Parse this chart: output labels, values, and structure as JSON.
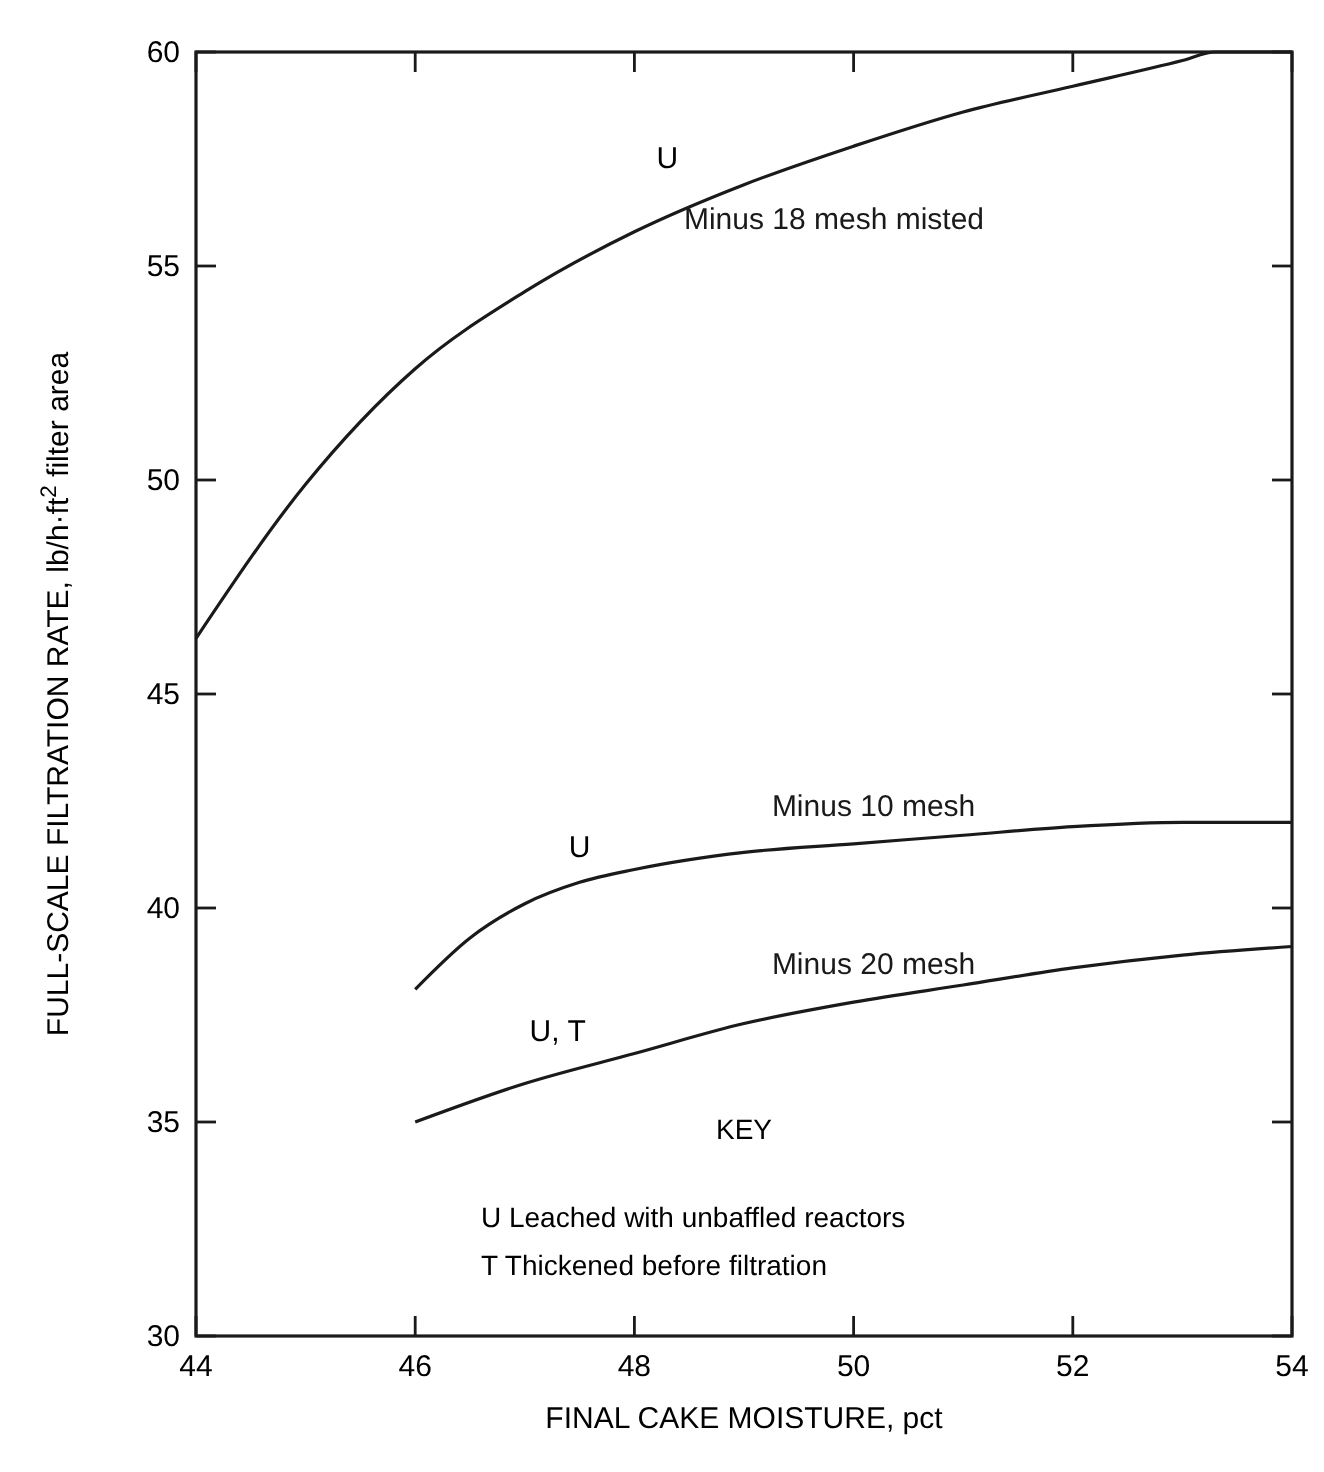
{
  "chart_data": {
    "type": "line",
    "xlabel": "FINAL CAKE MOISTURE, pct",
    "ylabel": "FULL-SCALE FILTRATION RATE, lb/h·ft$^{2}$ filter area",
    "xlim": [
      44,
      54
    ],
    "ylim": [
      30,
      60
    ],
    "xticks": [
      44,
      46,
      48,
      50,
      52,
      54
    ],
    "yticks": [
      30,
      35,
      40,
      45,
      50,
      55,
      60
    ],
    "grid": false,
    "marker": "none",
    "line_style": "solid",
    "series": [
      {
        "name": "Minus 18 mesh misted",
        "color": "#1a1a1a",
        "x": [
          44,
          45,
          46,
          47,
          48,
          49,
          50,
          51,
          52,
          53,
          53.3,
          54
        ],
        "values": [
          46.3,
          49.9,
          52.6,
          54.4,
          55.8,
          56.9,
          57.8,
          58.6,
          59.2,
          59.8,
          60,
          60
        ]
      },
      {
        "name": "Minus 10 mesh",
        "color": "#1a1a1a",
        "x": [
          46,
          46.5,
          47,
          47.5,
          48,
          49,
          50,
          51,
          52,
          53,
          54
        ],
        "values": [
          38.1,
          39.3,
          40.1,
          40.6,
          40.9,
          41.3,
          41.5,
          41.7,
          41.9,
          42,
          42
        ]
      },
      {
        "name": "Minus 20 mesh",
        "color": "#1a1a1a",
        "x": [
          46,
          47,
          48,
          49,
          50,
          51,
          52,
          53,
          54
        ],
        "values": [
          35,
          35.9,
          36.6,
          37.3,
          37.8,
          38.2,
          38.6,
          38.9,
          39.1
        ]
      }
    ],
    "annotations": [
      "U",
      "U",
      "U, T",
      "KEY",
      "U Leached with unbaffled reactors",
      "T Thickened before filtration"
    ]
  }
}
